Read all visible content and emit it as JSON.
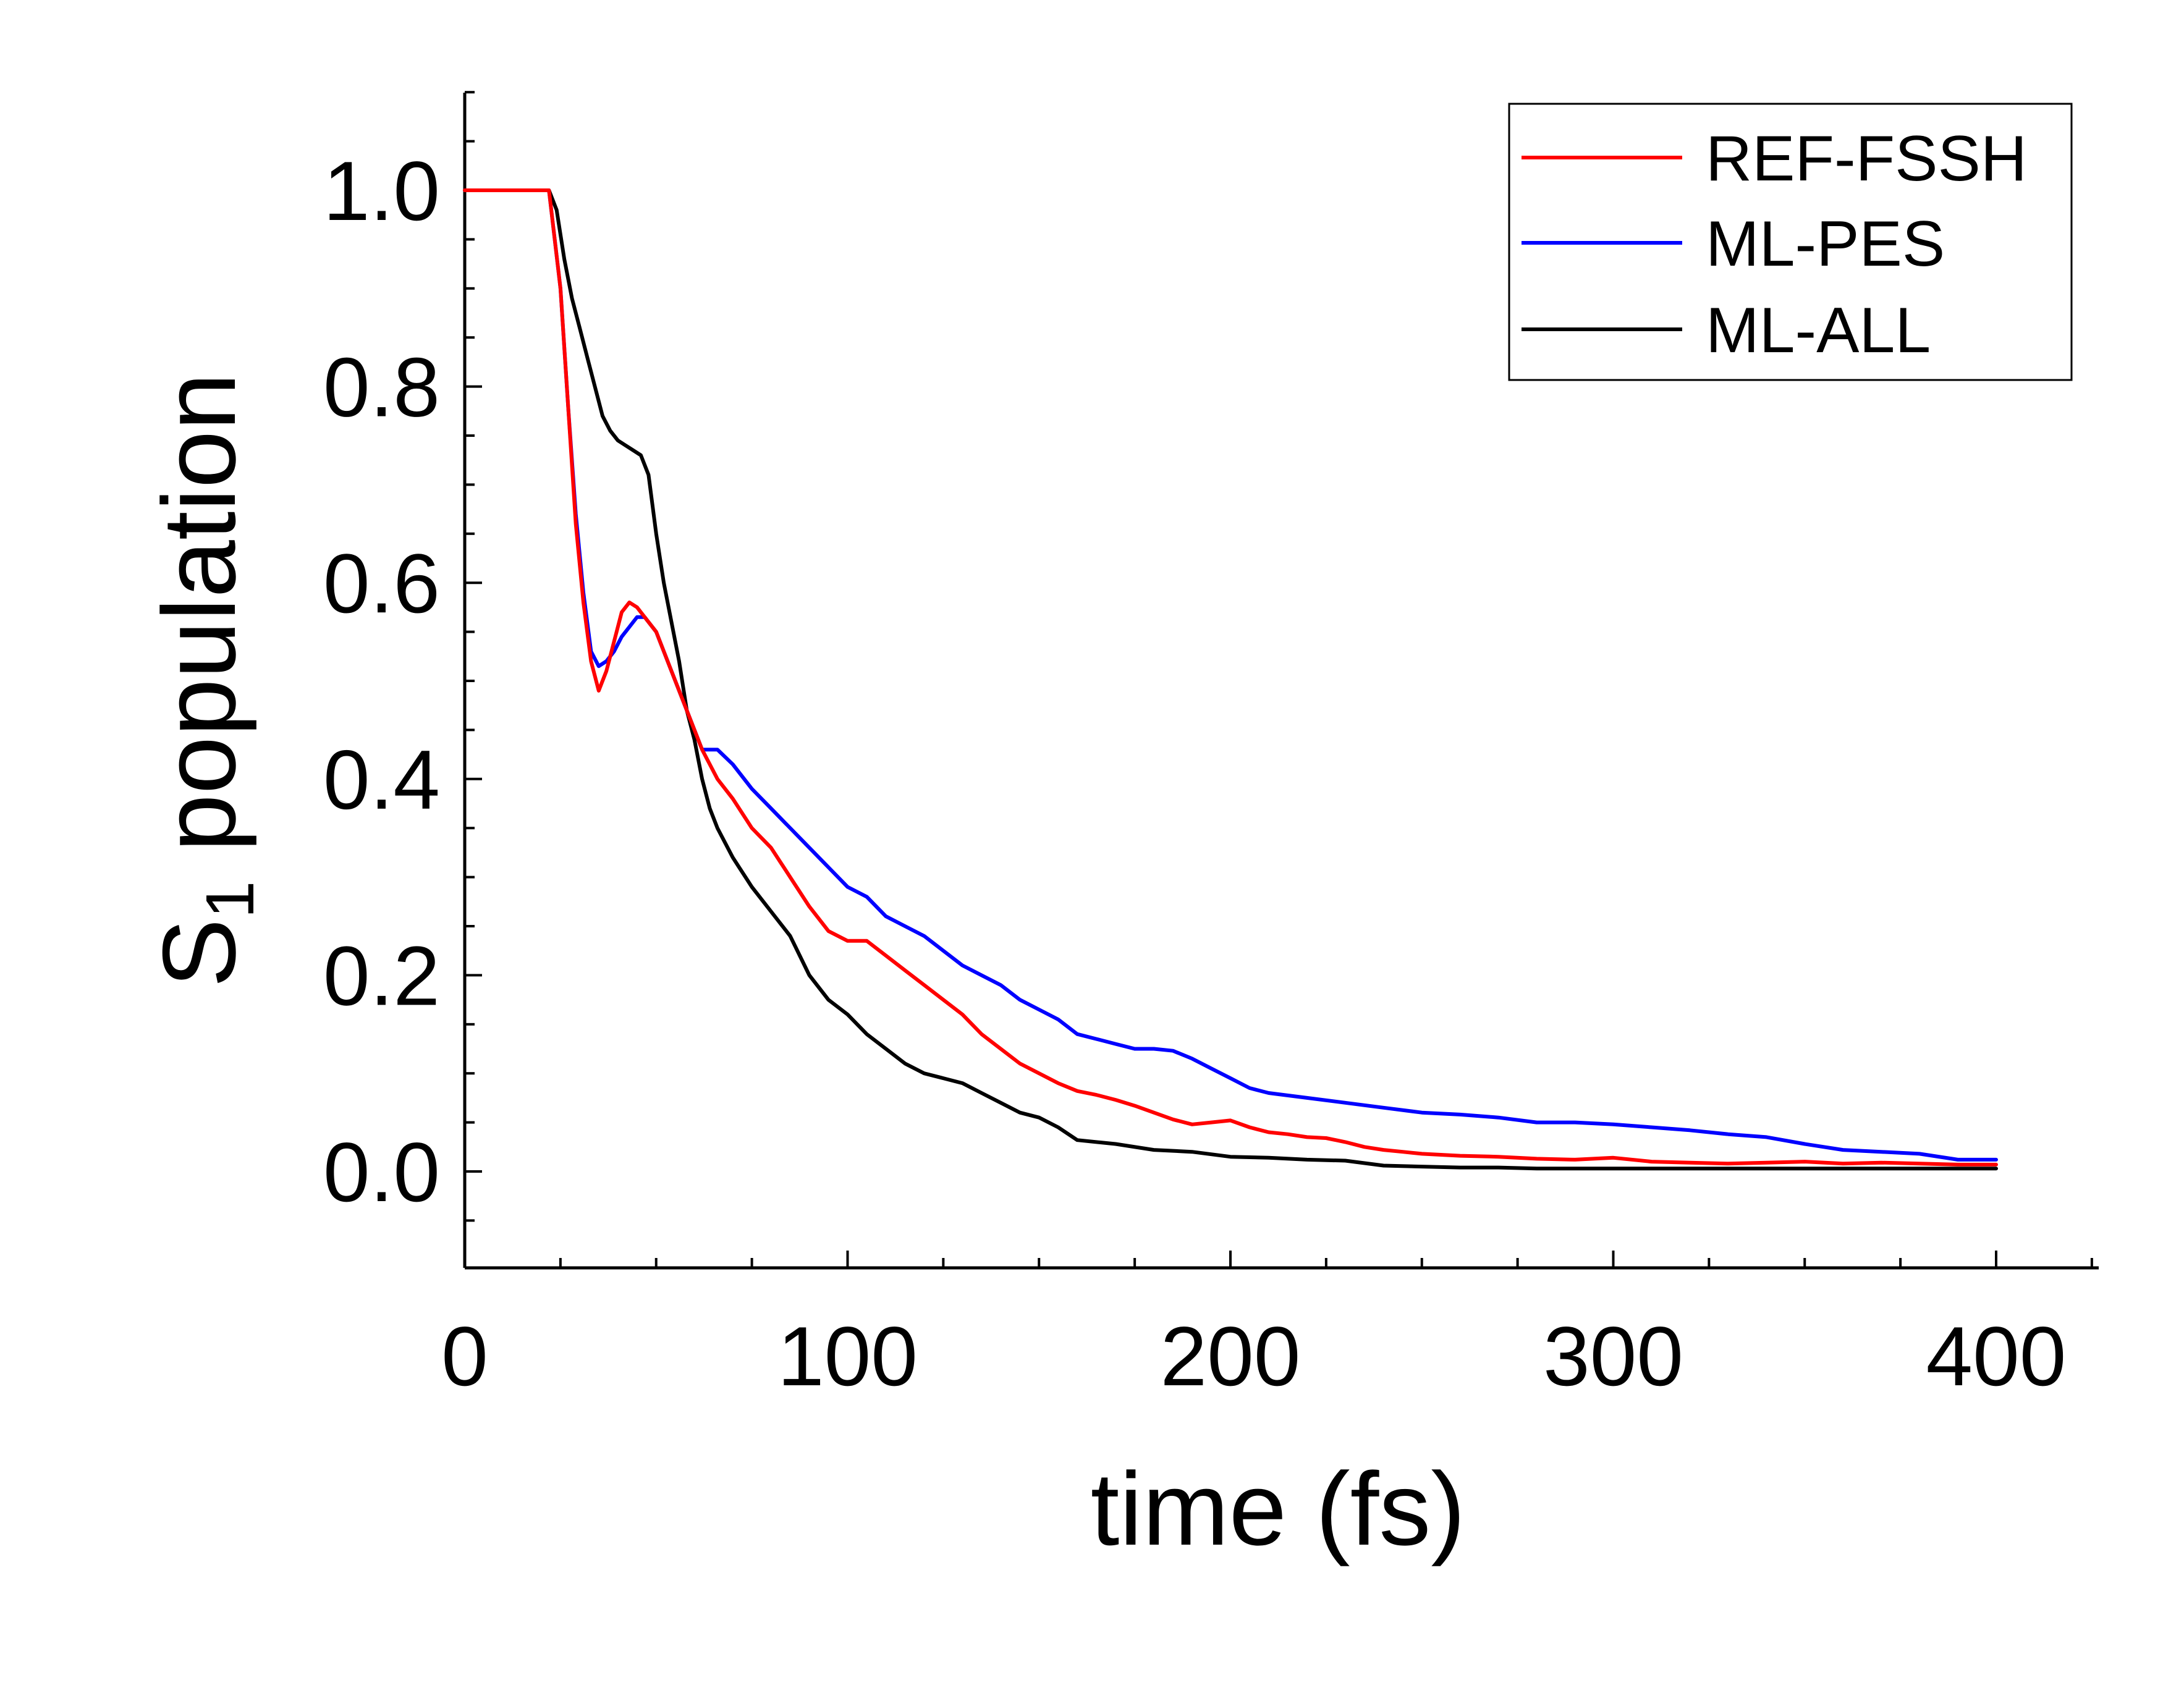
{
  "chart_data": {
    "type": "line",
    "title": "",
    "xlabel": "time (fs)",
    "ylabel_main": "S",
    "ylabel_subscript": "1",
    "ylabel_rest": " population",
    "xlim": [
      0,
      425
    ],
    "ylim": [
      -0.1,
      1.1
    ],
    "xticks": [
      "0",
      "100",
      "200",
      "300",
      "400"
    ],
    "yticks": [
      "0.0",
      "0.2",
      "0.4",
      "0.6",
      "0.8",
      "1.0"
    ],
    "legend_position": "top-right",
    "grid": false,
    "series": [
      {
        "name": "REF-FSSH",
        "color": "#ff0000",
        "points": [
          [
            0,
            1.0
          ],
          [
            22,
            1.0
          ],
          [
            25,
            0.9
          ],
          [
            27,
            0.78
          ],
          [
            29,
            0.66
          ],
          [
            31,
            0.58
          ],
          [
            33,
            0.52
          ],
          [
            35,
            0.49
          ],
          [
            37,
            0.51
          ],
          [
            39,
            0.54
          ],
          [
            41,
            0.57
          ],
          [
            43,
            0.58
          ],
          [
            45,
            0.575
          ],
          [
            47,
            0.565
          ],
          [
            50,
            0.55
          ],
          [
            53,
            0.52
          ],
          [
            56,
            0.49
          ],
          [
            59,
            0.46
          ],
          [
            62,
            0.43
          ],
          [
            66,
            0.4
          ],
          [
            70,
            0.38
          ],
          [
            75,
            0.35
          ],
          [
            80,
            0.33
          ],
          [
            85,
            0.3
          ],
          [
            90,
            0.27
          ],
          [
            95,
            0.245
          ],
          [
            100,
            0.235
          ],
          [
            105,
            0.235
          ],
          [
            110,
            0.22
          ],
          [
            115,
            0.205
          ],
          [
            120,
            0.19
          ],
          [
            125,
            0.175
          ],
          [
            130,
            0.16
          ],
          [
            135,
            0.14
          ],
          [
            140,
            0.125
          ],
          [
            145,
            0.11
          ],
          [
            150,
            0.1
          ],
          [
            155,
            0.09
          ],
          [
            160,
            0.082
          ],
          [
            165,
            0.078
          ],
          [
            170,
            0.073
          ],
          [
            175,
            0.067
          ],
          [
            180,
            0.06
          ],
          [
            185,
            0.053
          ],
          [
            190,
            0.048
          ],
          [
            195,
            0.05
          ],
          [
            200,
            0.052
          ],
          [
            205,
            0.045
          ],
          [
            210,
            0.04
          ],
          [
            215,
            0.038
          ],
          [
            220,
            0.035
          ],
          [
            225,
            0.034
          ],
          [
            230,
            0.03
          ],
          [
            235,
            0.025
          ],
          [
            240,
            0.022
          ],
          [
            245,
            0.02
          ],
          [
            250,
            0.018
          ],
          [
            260,
            0.016
          ],
          [
            270,
            0.015
          ],
          [
            280,
            0.013
          ],
          [
            290,
            0.012
          ],
          [
            300,
            0.014
          ],
          [
            310,
            0.01
          ],
          [
            320,
            0.009
          ],
          [
            330,
            0.008
          ],
          [
            340,
            0.009
          ],
          [
            350,
            0.01
          ],
          [
            360,
            0.008
          ],
          [
            370,
            0.009
          ],
          [
            380,
            0.008
          ],
          [
            390,
            0.007
          ],
          [
            400,
            0.007
          ]
        ]
      },
      {
        "name": "ML-PES",
        "color": "#0000ff",
        "points": [
          [
            0,
            1.0
          ],
          [
            22,
            1.0
          ],
          [
            25,
            0.9
          ],
          [
            27,
            0.78
          ],
          [
            29,
            0.67
          ],
          [
            31,
            0.59
          ],
          [
            33,
            0.53
          ],
          [
            35,
            0.515
          ],
          [
            37,
            0.52
          ],
          [
            39,
            0.53
          ],
          [
            41,
            0.545
          ],
          [
            43,
            0.555
          ],
          [
            45,
            0.565
          ],
          [
            47,
            0.565
          ],
          [
            50,
            0.55
          ],
          [
            53,
            0.52
          ],
          [
            56,
            0.49
          ],
          [
            59,
            0.46
          ],
          [
            62,
            0.43
          ],
          [
            66,
            0.43
          ],
          [
            70,
            0.415
          ],
          [
            75,
            0.39
          ],
          [
            80,
            0.37
          ],
          [
            85,
            0.35
          ],
          [
            90,
            0.33
          ],
          [
            95,
            0.31
          ],
          [
            100,
            0.29
          ],
          [
            105,
            0.28
          ],
          [
            110,
            0.26
          ],
          [
            115,
            0.25
          ],
          [
            120,
            0.24
          ],
          [
            125,
            0.225
          ],
          [
            130,
            0.21
          ],
          [
            135,
            0.2
          ],
          [
            140,
            0.19
          ],
          [
            145,
            0.175
          ],
          [
            150,
            0.165
          ],
          [
            155,
            0.155
          ],
          [
            160,
            0.14
          ],
          [
            165,
            0.135
          ],
          [
            170,
            0.13
          ],
          [
            175,
            0.125
          ],
          [
            180,
            0.125
          ],
          [
            185,
            0.123
          ],
          [
            190,
            0.115
          ],
          [
            195,
            0.105
          ],
          [
            200,
            0.095
          ],
          [
            205,
            0.085
          ],
          [
            210,
            0.08
          ],
          [
            220,
            0.075
          ],
          [
            230,
            0.07
          ],
          [
            240,
            0.065
          ],
          [
            250,
            0.06
          ],
          [
            260,
            0.058
          ],
          [
            270,
            0.055
          ],
          [
            280,
            0.05
          ],
          [
            290,
            0.05
          ],
          [
            300,
            0.048
          ],
          [
            310,
            0.045
          ],
          [
            320,
            0.042
          ],
          [
            330,
            0.038
          ],
          [
            340,
            0.035
          ],
          [
            350,
            0.028
          ],
          [
            360,
            0.022
          ],
          [
            370,
            0.02
          ],
          [
            380,
            0.018
          ],
          [
            390,
            0.012
          ],
          [
            400,
            0.012
          ]
        ]
      },
      {
        "name": "ML-ALL",
        "color": "#000000",
        "points": [
          [
            0,
            1.0
          ],
          [
            22,
            1.0
          ],
          [
            24,
            0.98
          ],
          [
            26,
            0.93
          ],
          [
            28,
            0.89
          ],
          [
            30,
            0.86
          ],
          [
            32,
            0.83
          ],
          [
            34,
            0.8
          ],
          [
            36,
            0.77
          ],
          [
            38,
            0.755
          ],
          [
            40,
            0.745
          ],
          [
            42,
            0.74
          ],
          [
            44,
            0.735
          ],
          [
            46,
            0.73
          ],
          [
            48,
            0.71
          ],
          [
            50,
            0.65
          ],
          [
            52,
            0.6
          ],
          [
            54,
            0.56
          ],
          [
            56,
            0.52
          ],
          [
            58,
            0.47
          ],
          [
            60,
            0.44
          ],
          [
            62,
            0.4
          ],
          [
            64,
            0.37
          ],
          [
            66,
            0.35
          ],
          [
            70,
            0.32
          ],
          [
            75,
            0.29
          ],
          [
            80,
            0.265
          ],
          [
            85,
            0.24
          ],
          [
            90,
            0.2
          ],
          [
            95,
            0.175
          ],
          [
            100,
            0.16
          ],
          [
            105,
            0.14
          ],
          [
            110,
            0.125
          ],
          [
            115,
            0.11
          ],
          [
            120,
            0.1
          ],
          [
            125,
            0.095
          ],
          [
            130,
            0.09
          ],
          [
            135,
            0.08
          ],
          [
            140,
            0.07
          ],
          [
            145,
            0.06
          ],
          [
            150,
            0.055
          ],
          [
            155,
            0.045
          ],
          [
            160,
            0.032
          ],
          [
            170,
            0.028
          ],
          [
            180,
            0.022
          ],
          [
            190,
            0.02
          ],
          [
            200,
            0.015
          ],
          [
            210,
            0.014
          ],
          [
            220,
            0.012
          ],
          [
            230,
            0.011
          ],
          [
            240,
            0.006
          ],
          [
            250,
            0.005
          ],
          [
            260,
            0.004
          ],
          [
            270,
            0.004
          ],
          [
            280,
            0.003
          ],
          [
            300,
            0.003
          ],
          [
            320,
            0.003
          ],
          [
            340,
            0.003
          ],
          [
            360,
            0.003
          ],
          [
            380,
            0.003
          ],
          [
            400,
            0.003
          ]
        ]
      }
    ]
  }
}
